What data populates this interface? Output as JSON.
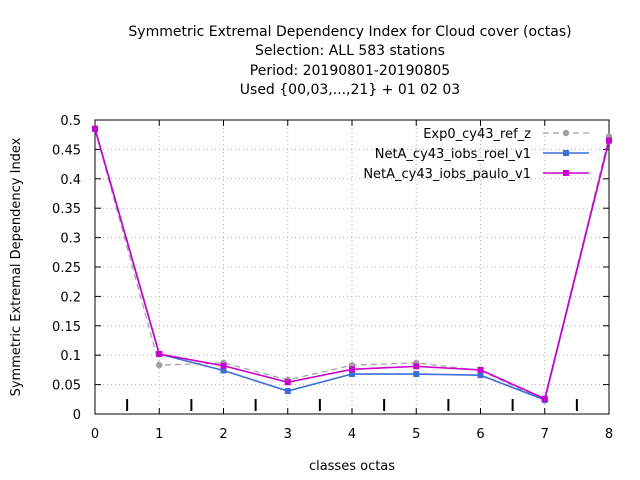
{
  "chart_data": {
    "type": "line",
    "title_lines": [
      "Symmetric Extremal Dependency Index  for Cloud cover (octas)",
      "Selection: ALL    583 stations",
      "Period: 20190801-20190805",
      "Used {00,03,...,21} + 01 02 03"
    ],
    "xlabel": "classes octas",
    "ylabel": "Symmetric Extremal Dependency Index",
    "xlim": [
      0,
      8
    ],
    "ylim": [
      0,
      0.5
    ],
    "x_ticks": [
      "0",
      "1",
      "2",
      "3",
      "4",
      "5",
      "6",
      "7",
      "8"
    ],
    "y_ticks": [
      "0",
      "0.05",
      "0.1",
      "0.15",
      "0.2",
      "0.25",
      "0.3",
      "0.35",
      "0.4",
      "0.45",
      "0.5"
    ],
    "grid": true,
    "legend_position": "top-right",
    "x": [
      0,
      1,
      2,
      3,
      4,
      5,
      6,
      7,
      8
    ],
    "series": [
      {
        "name": "Exp0_cy43_ref_z",
        "color": "#a0a0a0",
        "dash": "dashed",
        "marker": "circle",
        "values": [
          0.484,
          0.083,
          0.087,
          0.058,
          0.083,
          0.087,
          0.074,
          0.023,
          0.472
        ]
      },
      {
        "name": "NetA_cy43_iobs_roel_v1",
        "color": "#3a6fd8",
        "dash": "solid",
        "marker": "square",
        "values": [
          0.485,
          0.102,
          0.074,
          0.039,
          0.068,
          0.068,
          0.066,
          0.024,
          0.465
        ]
      },
      {
        "name": "NetA_cy43_iobs_paulo_v1",
        "color": "#cc00cc",
        "dash": "solid",
        "marker": "square",
        "values": [
          0.485,
          0.102,
          0.082,
          0.054,
          0.076,
          0.081,
          0.075,
          0.026,
          0.465
        ]
      }
    ]
  }
}
